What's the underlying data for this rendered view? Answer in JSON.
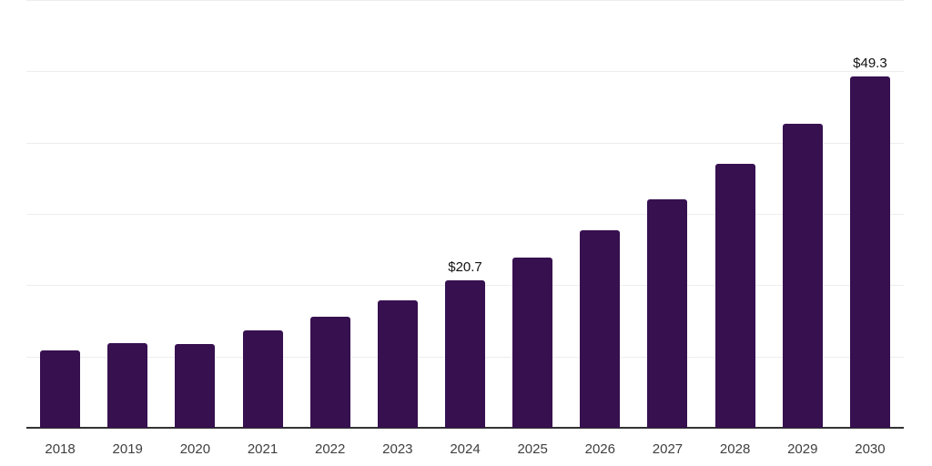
{
  "chart_data": {
    "type": "bar",
    "title": "",
    "xlabel": "",
    "ylabel": "",
    "categories": [
      "2018",
      "2019",
      "2020",
      "2021",
      "2022",
      "2023",
      "2024",
      "2025",
      "2026",
      "2027",
      "2028",
      "2029",
      "2030"
    ],
    "values": [
      10.9,
      11.9,
      11.7,
      13.6,
      15.6,
      17.9,
      20.7,
      23.9,
      27.7,
      32.0,
      37.0,
      42.6,
      49.3
    ],
    "data_labels": [
      "",
      "",
      "",
      "",
      "",
      "",
      "$20.7",
      "",
      "",
      "",
      "",
      "",
      "$49.3"
    ],
    "ylim": [
      0,
      60
    ],
    "grid_step": 10,
    "grid": true,
    "y_tick_labels_shown": false,
    "legend_position": "none",
    "colors": {
      "bar": "#371050",
      "gridline": "#ededed",
      "axis": "#333333",
      "x_tick_label": "#404040",
      "value_label": "#111111",
      "background": "#ffffff"
    }
  }
}
